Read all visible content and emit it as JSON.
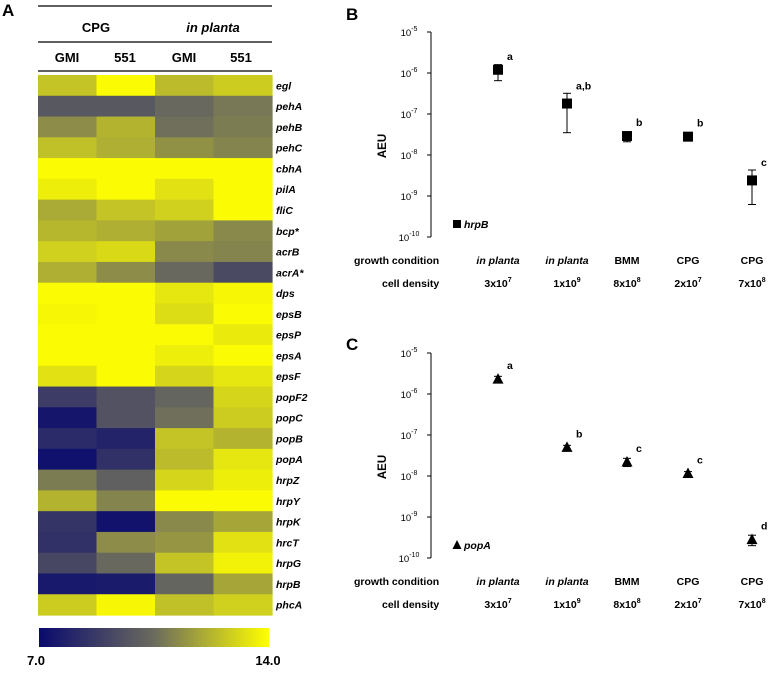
{
  "panels": {
    "A": "A",
    "B": "B",
    "C": "C"
  },
  "heatmap": {
    "group_headers": [
      "CPG",
      "in planta"
    ],
    "strain_headers": [
      "GMI",
      "551",
      "GMI",
      "551"
    ],
    "genes": [
      "egl",
      "pehA",
      "pehB",
      "pehC",
      "cbhA",
      "pilA",
      "fliC",
      "bcp*",
      "acrB",
      "acrA*",
      "dps",
      "epsB",
      "epsP",
      "epsA",
      "epsF",
      "popF2",
      "popC",
      "popB",
      "popA",
      "hrpZ",
      "hrpY",
      "hrpK",
      "hrcT",
      "hrpG",
      "hrpB",
      "phcA"
    ],
    "values": [
      [
        12.6,
        13.9,
        12.4,
        12.8
      ],
      [
        9.8,
        9.8,
        10.4,
        10.8
      ],
      [
        11.3,
        12.2,
        10.6,
        10.9
      ],
      [
        12.5,
        12.1,
        11.4,
        11.1
      ],
      [
        13.9,
        13.9,
        13.9,
        13.9
      ],
      [
        13.6,
        13.9,
        13.3,
        13.9
      ],
      [
        12.0,
        12.6,
        12.9,
        13.9
      ],
      [
        12.3,
        12.1,
        11.8,
        11.2
      ],
      [
        12.9,
        13.1,
        11.2,
        11.1
      ],
      [
        12.1,
        11.3,
        10.4,
        9.3
      ],
      [
        13.9,
        13.9,
        13.4,
        13.8
      ],
      [
        13.8,
        13.9,
        13.2,
        13.9
      ],
      [
        13.9,
        13.9,
        13.9,
        13.5
      ],
      [
        13.9,
        13.9,
        13.6,
        13.9
      ],
      [
        13.3,
        13.9,
        13.0,
        13.4
      ],
      [
        8.8,
        9.6,
        10.3,
        13.0
      ],
      [
        7.4,
        9.6,
        10.6,
        12.8
      ],
      [
        8.2,
        7.9,
        12.6,
        12.2
      ],
      [
        7.2,
        8.4,
        12.4,
        13.4
      ],
      [
        10.9,
        10.1,
        13.0,
        13.6
      ],
      [
        12.2,
        11.1,
        13.9,
        13.9
      ],
      [
        8.5,
        7.3,
        11.2,
        11.9
      ],
      [
        8.4,
        11.3,
        11.5,
        13.3
      ],
      [
        9.2,
        10.4,
        12.6,
        13.7
      ],
      [
        7.5,
        7.6,
        10.3,
        11.9
      ],
      [
        12.8,
        13.8,
        12.5,
        12.9
      ]
    ],
    "scale": {
      "min": 7.0,
      "max": 14.0,
      "min_label": "7.0",
      "max_label": "14.0",
      "low_color": "#0a0a6e",
      "mid_color": "#6b6b5e",
      "high_color": "#ffff00"
    }
  },
  "chart_data": [
    {
      "type": "scatter",
      "panel": "B",
      "gene": "hrpB",
      "ylabel": "AEU",
      "yscale": "log10",
      "ylim_exp": [
        -10,
        -5
      ],
      "ytick_base": "10",
      "ytick_exps": [
        "-10",
        "-9",
        "-8",
        "-7",
        "-6",
        "-5"
      ],
      "marker": "square",
      "row_labels": {
        "condition": "growth condition",
        "density": "cell density"
      },
      "categories": [
        {
          "condition": "in planta",
          "italic": true,
          "density_base": "3x10",
          "density_exp": "7",
          "value": 1.2e-06,
          "err_low": 6.5e-07,
          "err_high": 1.6e-06,
          "letter": "a"
        },
        {
          "condition": "in planta",
          "italic": true,
          "density_base": "1x10",
          "density_exp": "9",
          "value": 1.8e-07,
          "err_low": 3.5e-08,
          "err_high": 3.2e-07,
          "letter": "a,b"
        },
        {
          "condition": "BMM",
          "italic": false,
          "density_base": "8x10",
          "density_exp": "8",
          "value": 2.9e-08,
          "err_low": 2.1e-08,
          "err_high": 3.4e-08,
          "letter": "b"
        },
        {
          "condition": "CPG",
          "italic": false,
          "density_base": "2x10",
          "density_exp": "7",
          "value": 2.8e-08,
          "err_low": 2.6e-08,
          "err_high": 3e-08,
          "letter": "b"
        },
        {
          "condition": "CPG",
          "italic": false,
          "density_base": "7x10",
          "density_exp": "8",
          "value": 2.4e-09,
          "err_low": 6.2e-10,
          "err_high": 4.3e-09,
          "letter": "c"
        }
      ]
    },
    {
      "type": "scatter",
      "panel": "C",
      "gene": "popA",
      "ylabel": "AEU",
      "yscale": "log10",
      "ylim_exp": [
        -10,
        -5
      ],
      "ytick_base": "10",
      "ytick_exps": [
        "-10",
        "-9",
        "-8",
        "-7",
        "-6",
        "-5"
      ],
      "marker": "triangle",
      "row_labels": {
        "condition": "growth condition",
        "density": "cell density"
      },
      "categories": [
        {
          "condition": "in planta",
          "italic": true,
          "density_base": "3x10",
          "density_exp": "7",
          "value": 2.3e-06,
          "err_low": 1.9e-06,
          "err_high": 2.7e-06,
          "letter": "a"
        },
        {
          "condition": "in planta",
          "italic": true,
          "density_base": "1x10",
          "density_exp": "9",
          "value": 5e-08,
          "err_low": 4.4e-08,
          "err_high": 5.6e-08,
          "letter": "b"
        },
        {
          "condition": "BMM",
          "italic": false,
          "density_base": "8x10",
          "density_exp": "8",
          "value": 2.2e-08,
          "err_low": 1.7e-08,
          "err_high": 2.7e-08,
          "letter": "c"
        },
        {
          "condition": "CPG",
          "italic": false,
          "density_base": "2x10",
          "density_exp": "7",
          "value": 1.15e-08,
          "err_low": 1.02e-08,
          "err_high": 1.28e-08,
          "letter": "c"
        },
        {
          "condition": "CPG",
          "italic": false,
          "density_base": "7x10",
          "density_exp": "8",
          "value": 2.8e-10,
          "err_low": 2e-10,
          "err_high": 3.6e-10,
          "letter": "d"
        }
      ]
    }
  ]
}
